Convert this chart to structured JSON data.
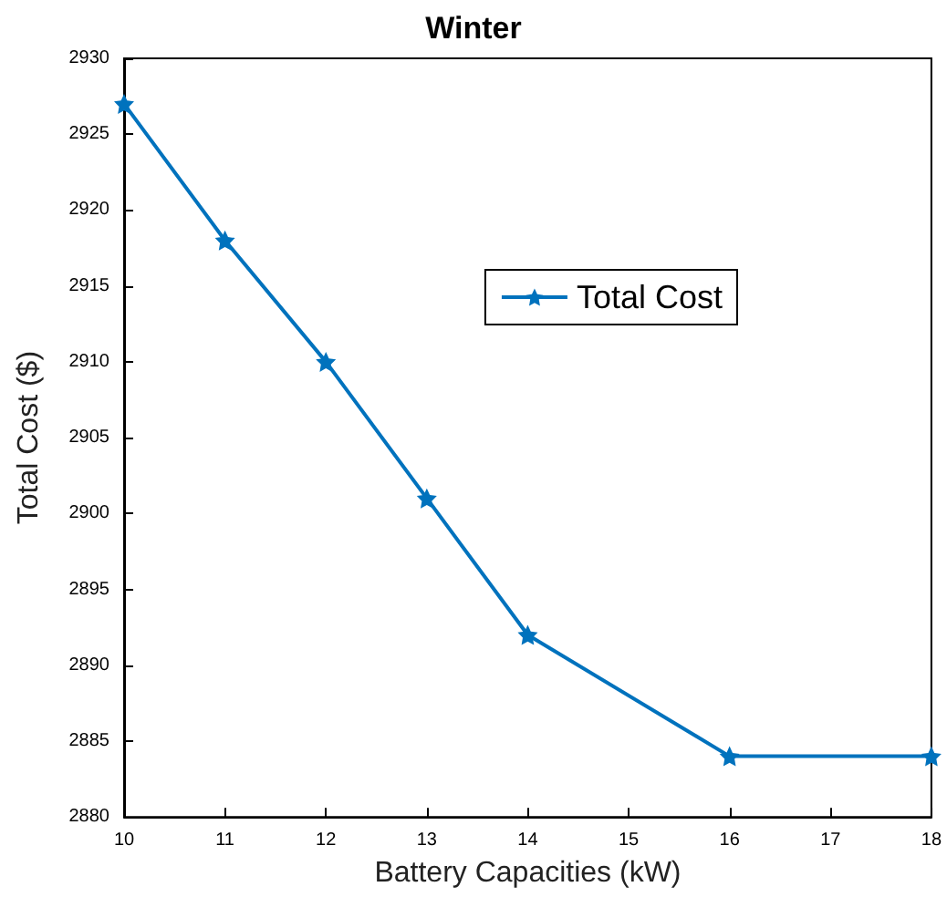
{
  "chart_data": {
    "type": "line",
    "title": "Winter",
    "xlabel": "Battery Capacities (kW)",
    "ylabel": "Total Cost ($)",
    "x": [
      10,
      11,
      12,
      13,
      14,
      16,
      18
    ],
    "series": [
      {
        "name": "Total Cost",
        "color": "#0072bd",
        "values": [
          2927,
          2918,
          2910,
          2901,
          2892,
          2884,
          2884
        ]
      }
    ],
    "xlim": [
      10,
      18
    ],
    "xticks": [
      10,
      11,
      12,
      13,
      14,
      15,
      16,
      17,
      18
    ],
    "ylim": [
      2880,
      2930
    ],
    "yticks": [
      2880,
      2885,
      2890,
      2895,
      2900,
      2905,
      2910,
      2915,
      2920,
      2925,
      2930
    ],
    "marker": "star",
    "line_style": "solid",
    "legend": "right",
    "grid": false
  }
}
